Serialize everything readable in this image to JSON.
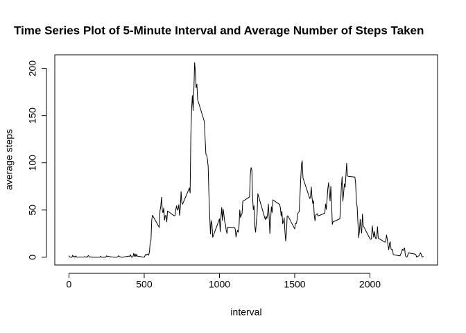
{
  "chart_data": {
    "type": "line",
    "title": "Time Series Plot of 5-Minute Interval and Average Number of Steps Taken",
    "xlabel": "interval",
    "ylabel": "average steps",
    "color": "#000000",
    "xlim": [
      -94.2,
      2449.2
    ],
    "ylim": [
      -8.25,
      214.42
    ],
    "xticks": [
      0,
      500,
      1000,
      1500,
      2000
    ],
    "yticks": [
      0,
      50,
      100,
      150,
      200
    ],
    "x": [
      0,
      5,
      10,
      15,
      20,
      25,
      30,
      35,
      40,
      45,
      50,
      55,
      100,
      105,
      110,
      115,
      120,
      125,
      130,
      135,
      140,
      145,
      150,
      155,
      200,
      205,
      210,
      215,
      220,
      225,
      230,
      235,
      240,
      245,
      250,
      255,
      300,
      305,
      310,
      315,
      320,
      325,
      330,
      335,
      340,
      345,
      350,
      355,
      400,
      405,
      410,
      415,
      420,
      425,
      430,
      435,
      440,
      445,
      450,
      455,
      500,
      505,
      510,
      515,
      520,
      525,
      530,
      535,
      540,
      545,
      550,
      555,
      600,
      605,
      610,
      615,
      620,
      625,
      630,
      635,
      640,
      645,
      650,
      655,
      700,
      705,
      710,
      715,
      720,
      725,
      730,
      735,
      740,
      745,
      750,
      755,
      800,
      805,
      810,
      815,
      820,
      825,
      830,
      835,
      840,
      845,
      850,
      855,
      900,
      905,
      910,
      915,
      920,
      925,
      930,
      935,
      940,
      945,
      950,
      955,
      1000,
      1005,
      1010,
      1015,
      1020,
      1025,
      1030,
      1035,
      1040,
      1045,
      1050,
      1055,
      1100,
      1105,
      1110,
      1115,
      1120,
      1125,
      1130,
      1135,
      1140,
      1145,
      1150,
      1155,
      1200,
      1205,
      1210,
      1215,
      1220,
      1225,
      1230,
      1235,
      1240,
      1245,
      1250,
      1255,
      1300,
      1305,
      1310,
      1315,
      1320,
      1325,
      1330,
      1335,
      1340,
      1345,
      1350,
      1355,
      1400,
      1405,
      1410,
      1415,
      1420,
      1425,
      1430,
      1435,
      1440,
      1445,
      1450,
      1455,
      1500,
      1505,
      1510,
      1515,
      1520,
      1525,
      1530,
      1535,
      1540,
      1545,
      1550,
      1555,
      1600,
      1605,
      1610,
      1615,
      1620,
      1625,
      1630,
      1635,
      1640,
      1645,
      1650,
      1655,
      1700,
      1705,
      1710,
      1715,
      1720,
      1725,
      1730,
      1735,
      1740,
      1745,
      1750,
      1755,
      1800,
      1805,
      1810,
      1815,
      1820,
      1825,
      1830,
      1835,
      1840,
      1845,
      1850,
      1855,
      1900,
      1905,
      1910,
      1915,
      1920,
      1925,
      1930,
      1935,
      1940,
      1945,
      1950,
      1955,
      2000,
      2005,
      2010,
      2015,
      2020,
      2025,
      2030,
      2035,
      2040,
      2045,
      2050,
      2055,
      2100,
      2105,
      2110,
      2115,
      2120,
      2125,
      2130,
      2135,
      2140,
      2145,
      2150,
      2155,
      2200,
      2205,
      2210,
      2215,
      2220,
      2225,
      2230,
      2235,
      2240,
      2245,
      2250,
      2255,
      2300,
      2305,
      2310,
      2315,
      2320,
      2325,
      2330,
      2335,
      2340,
      2345,
      2350,
      2355
    ],
    "values": [
      1.7,
      0.3,
      0.1,
      0.2,
      0.1,
      2.1,
      0.5,
      0.9,
      0,
      1.5,
      0.3,
      0.1,
      0.3,
      0.7,
      0.2,
      0.3,
      0,
      1.1,
      1.8,
      0.2,
      0.2,
      0.4,
      0.3,
      0,
      0,
      0,
      1.1,
      0,
      0,
      0.1,
      0,
      0.2,
      0,
      0,
      1.5,
      0.9,
      0,
      0,
      0,
      0,
      0.2,
      0.6,
      1.6,
      0.6,
      0.5,
      0.1,
      0,
      0,
      1.2,
      0.9,
      2.6,
      0,
      0.3,
      0.4,
      4.1,
      0.7,
      3.5,
      0.8,
      3.1,
      1.1,
      0,
      1.6,
      3,
      2.2,
      3.3,
      3,
      2.1,
      6.1,
      16,
      18.3,
      39.5,
      44.5,
      31.5,
      49.3,
      53.8,
      63.5,
      50,
      47.1,
      52.2,
      39.3,
      44,
      44.2,
      37.4,
      49,
      43.8,
      44.4,
      50.5,
      54.5,
      49.9,
      51,
      55.7,
      44.3,
      52.3,
      69.5,
      57.8,
      56.2,
      73.4,
      68.2,
      129.4,
      157.5,
      171.2,
      155.4,
      177.3,
      206.2,
      195.9,
      179.6,
      183.4,
      167,
      143.5,
      124,
      109.1,
      108.1,
      103.7,
      96,
      66.2,
      45.2,
      24.8,
      38.8,
      35,
      21.1,
      40.6,
      27,
      42.4,
      52.7,
      38.9,
      50.8,
      44.3,
      37.4,
      34.7,
      28.3,
      25.1,
      31.9,
      31.4,
      29.7,
      21.3,
      25.5,
      28.4,
      26.5,
      33.4,
      50,
      42,
      44.6,
      46,
      59.2,
      63.9,
      87.7,
      94.8,
      92.8,
      63.4,
      50.2,
      54.5,
      32.4,
      26.5,
      37.7,
      45.1,
      67.3,
      42.3,
      39.9,
      43.3,
      41,
      46.2,
      56.4,
      42.8,
      25.1,
      40,
      53.5,
      47.3,
      60.8,
      55.8,
      52,
      43.6,
      48.7,
      35.5,
      37.5,
      41.8,
      27.5,
      17.1,
      26.1,
      43.6,
      43.8,
      30,
      36.1,
      35.5,
      38.8,
      46,
      47.8,
      48.1,
      65.3,
      82.9,
      98.7,
      102.1,
      84,
      62.1,
      64.1,
      74.5,
      63.2,
      56.9,
      59.8,
      43.9,
      38.6,
      44.7,
      45.5,
      46.2,
      43.7,
      46.6,
      56.3,
      50.7,
      61.2,
      72.7,
      78.9,
      68.9,
      59.7,
      75.1,
      56.5,
      34.8,
      37.5,
      40.7,
      58,
      74.7,
      85.3,
      59.3,
      67.8,
      77.7,
      74.2,
      85.3,
      99.5,
      86.6,
      85.6,
      84.9,
      77.8,
      58,
      53.4,
      36.3,
      20.7,
      27.4,
      40,
      30.2,
      25.5,
      45.7,
      33.5,
      19.6,
      19,
      19.3,
      33.3,
      26.8,
      21.2,
      27.3,
      21.3,
      19.5,
      21.3,
      32.3,
      20.2,
      15.9,
      17.2,
      23.5,
      19.2,
      12.5,
      8,
      14.7,
      16.3,
      8.7,
      7.8,
      8.1,
      2.6,
      1.5,
      3.7,
      4.8,
      8.5,
      7.1,
      8.7,
      9.8,
      2.2,
      0.3,
      0.1,
      1.6,
      4.6,
      3.3,
      2.8,
      0,
      0.8,
      1,
      1.6,
      2.6,
      4.7,
      3.3,
      0.6,
      0.2,
      1.1
    ]
  }
}
